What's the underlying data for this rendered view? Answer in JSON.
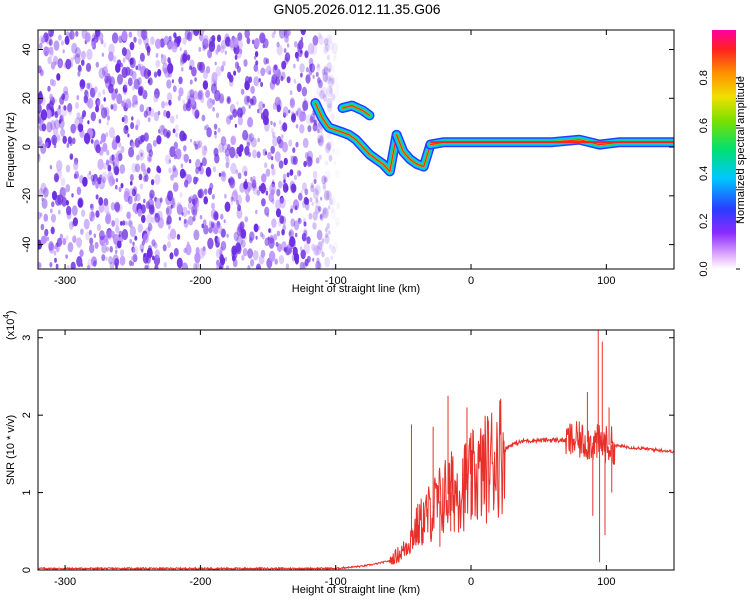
{
  "title": "GN05.2026.012.11.35.G06",
  "colors": {
    "snr_line": "#e8302a",
    "spectrogram_noise": "#6a2be0",
    "axis": "#000000"
  },
  "chart_data": [
    {
      "type": "heatmap",
      "name": "spectrogram",
      "xlabel": "Height of straight line (km)",
      "ylabel": "Frequency (Hz)",
      "xlim": [
        -320,
        150
      ],
      "ylim": [
        -50,
        48
      ],
      "x_ticks": [
        -300,
        -200,
        -100,
        0,
        100
      ],
      "y_ticks": [
        -40,
        -20,
        0,
        20,
        40
      ],
      "grid": false,
      "noise_region_x": [
        -320,
        -100
      ],
      "noise_fade_x": [
        -125,
        -98
      ],
      "track": [
        {
          "x": -115,
          "f": 18
        },
        {
          "x": -110,
          "f": 12
        },
        {
          "x": -105,
          "f": 8
        },
        {
          "x": -100,
          "f": 7
        },
        {
          "x": -95,
          "f": 6
        },
        {
          "x": -90,
          "f": 5
        },
        {
          "x": -85,
          "f": 3
        },
        {
          "x": -80,
          "f": 0
        },
        {
          "x": -75,
          "f": -3
        },
        {
          "x": -70,
          "f": -5
        },
        {
          "x": -65,
          "f": -7
        },
        {
          "x": -60,
          "f": -10
        },
        {
          "x": -55,
          "f": 5
        },
        {
          "x": -50,
          "f": -2
        },
        {
          "x": -45,
          "f": -5
        },
        {
          "x": -40,
          "f": -7
        },
        {
          "x": -35,
          "f": -8
        },
        {
          "x": -30,
          "f": 1
        },
        {
          "x": -20,
          "f": 2
        },
        {
          "x": -10,
          "f": 2
        },
        {
          "x": 0,
          "f": 2
        },
        {
          "x": 20,
          "f": 2
        },
        {
          "x": 40,
          "f": 2
        },
        {
          "x": 60,
          "f": 2
        },
        {
          "x": 80,
          "f": 3
        },
        {
          "x": 95,
          "f": 1
        },
        {
          "x": 110,
          "f": 2
        },
        {
          "x": 150,
          "f": 2
        }
      ],
      "upper_branch": [
        {
          "x": -95,
          "f": 16
        },
        {
          "x": -88,
          "f": 17
        },
        {
          "x": -80,
          "f": 15
        },
        {
          "x": -75,
          "f": 13
        }
      ],
      "colorbar": {
        "label": "Normalized spectral amplitude",
        "range": [
          0,
          1
        ],
        "ticks": [
          0.0,
          0.2,
          0.4,
          0.6,
          0.8
        ],
        "tick_labels": [
          "0.0",
          "0.2",
          "0.4",
          "0.6",
          "0.8"
        ]
      }
    },
    {
      "type": "line",
      "name": "snr",
      "xlabel": "Height of straight line (km)",
      "ylabel": "SNR (10 * v/v)",
      "scale_label": "(x10",
      "scale_exponent": "4",
      "scale_close": ")",
      "xlim": [
        -320,
        150
      ],
      "ylim": [
        0,
        3.1
      ],
      "x_ticks": [
        -300,
        -200,
        -100,
        0,
        100
      ],
      "y_ticks": [
        0,
        1,
        2,
        3
      ],
      "grid": false,
      "envelope": [
        {
          "x": -320,
          "y": 0.02
        },
        {
          "x": -100,
          "y": 0.02
        },
        {
          "x": -80,
          "y": 0.05
        },
        {
          "x": -70,
          "y": 0.08
        },
        {
          "x": -60,
          "y": 0.12
        },
        {
          "x": -50,
          "y": 0.25
        },
        {
          "x": -40,
          "y": 0.55
        },
        {
          "x": -30,
          "y": 0.75
        },
        {
          "x": -20,
          "y": 0.95
        },
        {
          "x": -10,
          "y": 1.05
        },
        {
          "x": 0,
          "y": 1.15
        },
        {
          "x": 10,
          "y": 1.3
        },
        {
          "x": 20,
          "y": 1.5
        },
        {
          "x": 30,
          "y": 1.62
        },
        {
          "x": 40,
          "y": 1.67
        },
        {
          "x": 60,
          "y": 1.68
        },
        {
          "x": 80,
          "y": 1.67
        },
        {
          "x": 100,
          "y": 1.62
        },
        {
          "x": 120,
          "y": 1.58
        },
        {
          "x": 150,
          "y": 1.53
        }
      ],
      "spikes": [
        {
          "x": -44,
          "y": 1.88
        },
        {
          "x": -40,
          "y": 0.4
        },
        {
          "x": -28,
          "y": 1.85
        },
        {
          "x": -23,
          "y": 0.3
        },
        {
          "x": -17,
          "y": 2.25
        },
        {
          "x": -15,
          "y": 0.5
        },
        {
          "x": -3,
          "y": 2.1
        },
        {
          "x": 0,
          "y": 0.65
        },
        {
          "x": 8,
          "y": 1.45
        },
        {
          "x": 86,
          "y": 2.3
        },
        {
          "x": 90,
          "y": 0.7
        },
        {
          "x": 94,
          "y": 3.1
        },
        {
          "x": 95,
          "y": 0.1
        },
        {
          "x": 97,
          "y": 2.95
        },
        {
          "x": 99,
          "y": 0.45
        },
        {
          "x": 102,
          "y": 2.1
        },
        {
          "x": 104,
          "y": 1.0
        }
      ]
    }
  ]
}
